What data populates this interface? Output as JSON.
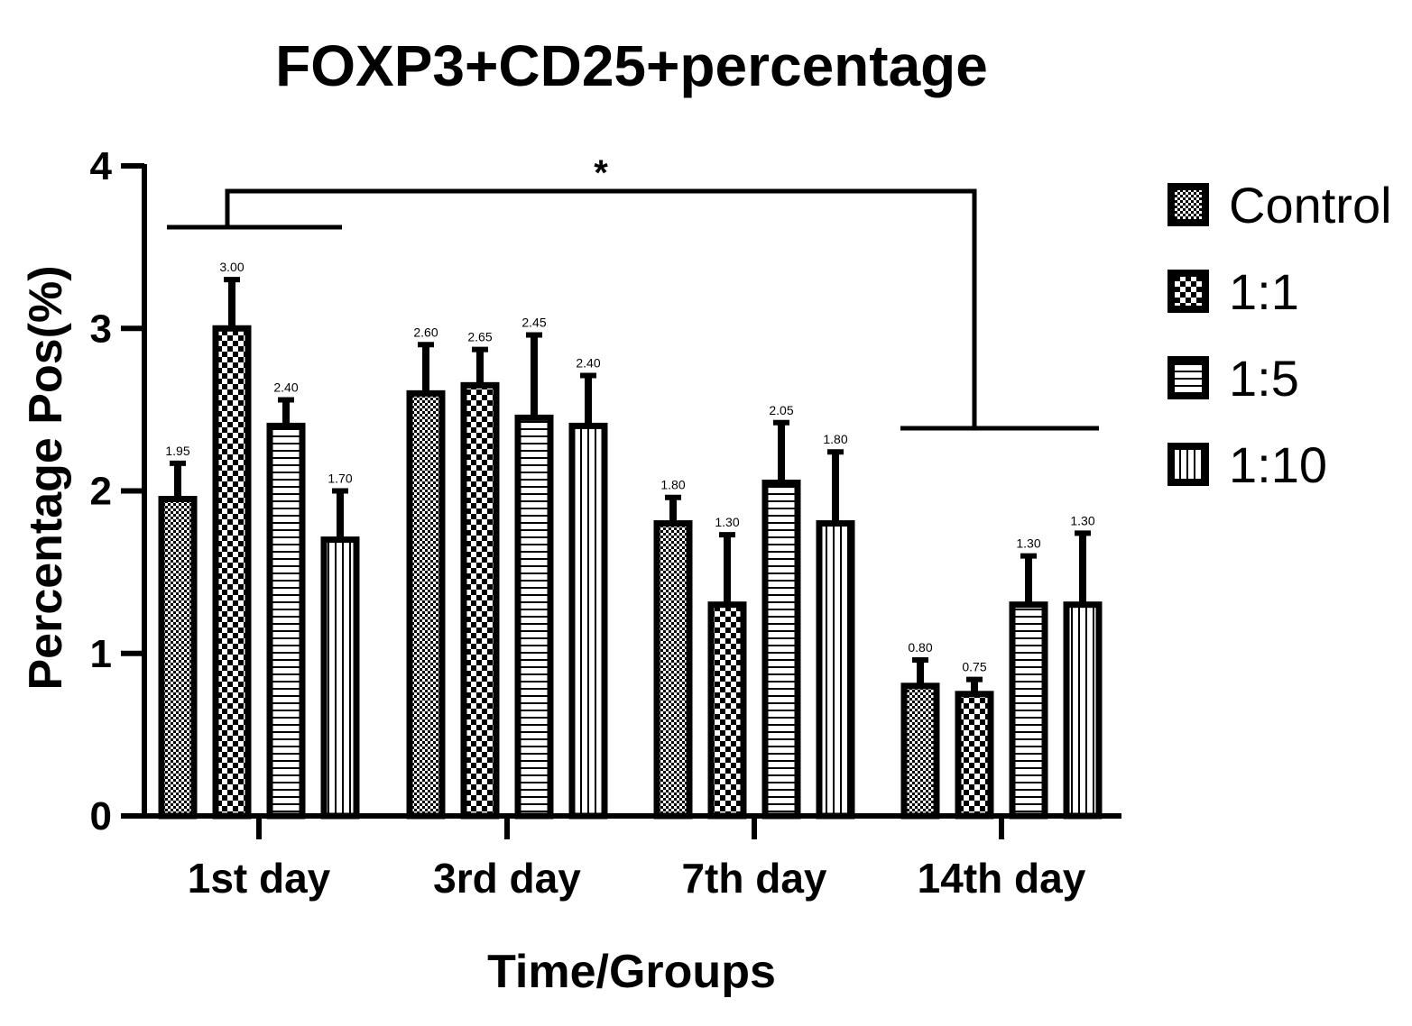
{
  "chart_data": {
    "type": "bar",
    "title": "FOXP3+CD25+percentage",
    "xlabel": "Time/Groups",
    "ylabel": "Percentage Pos(%)",
    "ylim": [
      0,
      4
    ],
    "yticks": [
      "0",
      "1",
      "2",
      "3",
      "4"
    ],
    "categories": [
      "1st day",
      "3rd day",
      "7th day",
      "14th day"
    ],
    "legend_position": "right",
    "series": [
      {
        "name": "Control",
        "pattern": "fine-checker",
        "values": [
          1.95,
          2.6,
          1.8,
          0.8
        ],
        "errors": [
          0.22,
          0.3,
          0.16,
          0.16
        ],
        "labels": [
          "1.95",
          "2.60",
          "1.80",
          "0.80"
        ]
      },
      {
        "name": "1:1",
        "pattern": "coarse-checker",
        "values": [
          3.0,
          2.65,
          1.3,
          0.75
        ],
        "errors": [
          0.3,
          0.22,
          0.43,
          0.09
        ],
        "labels": [
          "3.00",
          "2.65",
          "1.30",
          "0.75"
        ]
      },
      {
        "name": "1:5",
        "pattern": "horizontal-lines",
        "values": [
          2.4,
          2.45,
          2.05,
          1.3
        ],
        "errors": [
          0.16,
          0.51,
          0.37,
          0.3
        ],
        "labels": [
          "2.40",
          "2.45",
          "2.05",
          "1.30"
        ]
      },
      {
        "name": "1:10",
        "pattern": "vertical-lines",
        "values": [
          1.7,
          2.4,
          1.8,
          1.3
        ],
        "errors": [
          0.3,
          0.31,
          0.44,
          0.44
        ],
        "labels": [
          "1.70",
          "2.40",
          "1.80",
          "1.30"
        ]
      }
    ],
    "significance": {
      "from": "1st day",
      "to": "14th day",
      "marker": "*"
    }
  },
  "colors": {
    "ink": "#000000",
    "background": "#ffffff"
  }
}
